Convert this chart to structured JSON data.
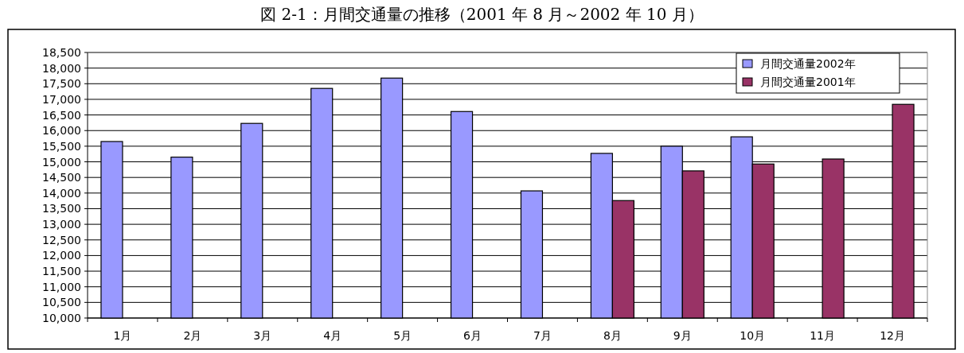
{
  "chart_data": {
    "type": "bar",
    "title": "図 2-1：月間交通量の推移（2001 年 8 月～2002 年 10 月）",
    "categories": [
      "1月",
      "2月",
      "3月",
      "4月",
      "5月",
      "6月",
      "7月",
      "8月",
      "9月",
      "10月",
      "11月",
      "12月"
    ],
    "series": [
      {
        "name": "月間交通量2002年",
        "color": "#9999ff",
        "values": [
          15650,
          15150,
          16230,
          17350,
          17680,
          16610,
          14070,
          15270,
          15500,
          15800,
          null,
          null
        ]
      },
      {
        "name": "月間交通量2001年",
        "color": "#993366",
        "values": [
          null,
          null,
          null,
          null,
          null,
          null,
          null,
          13760,
          14710,
          14930,
          15090,
          16840
        ]
      }
    ],
    "ylim": [
      10000,
      18500
    ],
    "yticks": [
      {
        "value": 10000,
        "label": "10,000"
      },
      {
        "value": 10500,
        "label": "10,500"
      },
      {
        "value": 11000,
        "label": "11,000"
      },
      {
        "value": 11500,
        "label": "11,500"
      },
      {
        "value": 12000,
        "label": "12,000"
      },
      {
        "value": 12500,
        "label": "12,500"
      },
      {
        "value": 13000,
        "label": "13,000"
      },
      {
        "value": 13500,
        "label": "13,500"
      },
      {
        "value": 14000,
        "label": "14,000"
      },
      {
        "value": 14500,
        "label": "14,500"
      },
      {
        "value": 15000,
        "label": "15,000"
      },
      {
        "value": 15500,
        "label": "15,500"
      },
      {
        "value": 16000,
        "label": "16,000"
      },
      {
        "value": 16500,
        "label": "16,500"
      },
      {
        "value": 17000,
        "label": "17,000"
      },
      {
        "value": 17500,
        "label": "17,500"
      },
      {
        "value": 18000,
        "label": "18,000"
      },
      {
        "value": 18500,
        "label": "18,500"
      }
    ],
    "grid": "y",
    "legend": "top right"
  }
}
